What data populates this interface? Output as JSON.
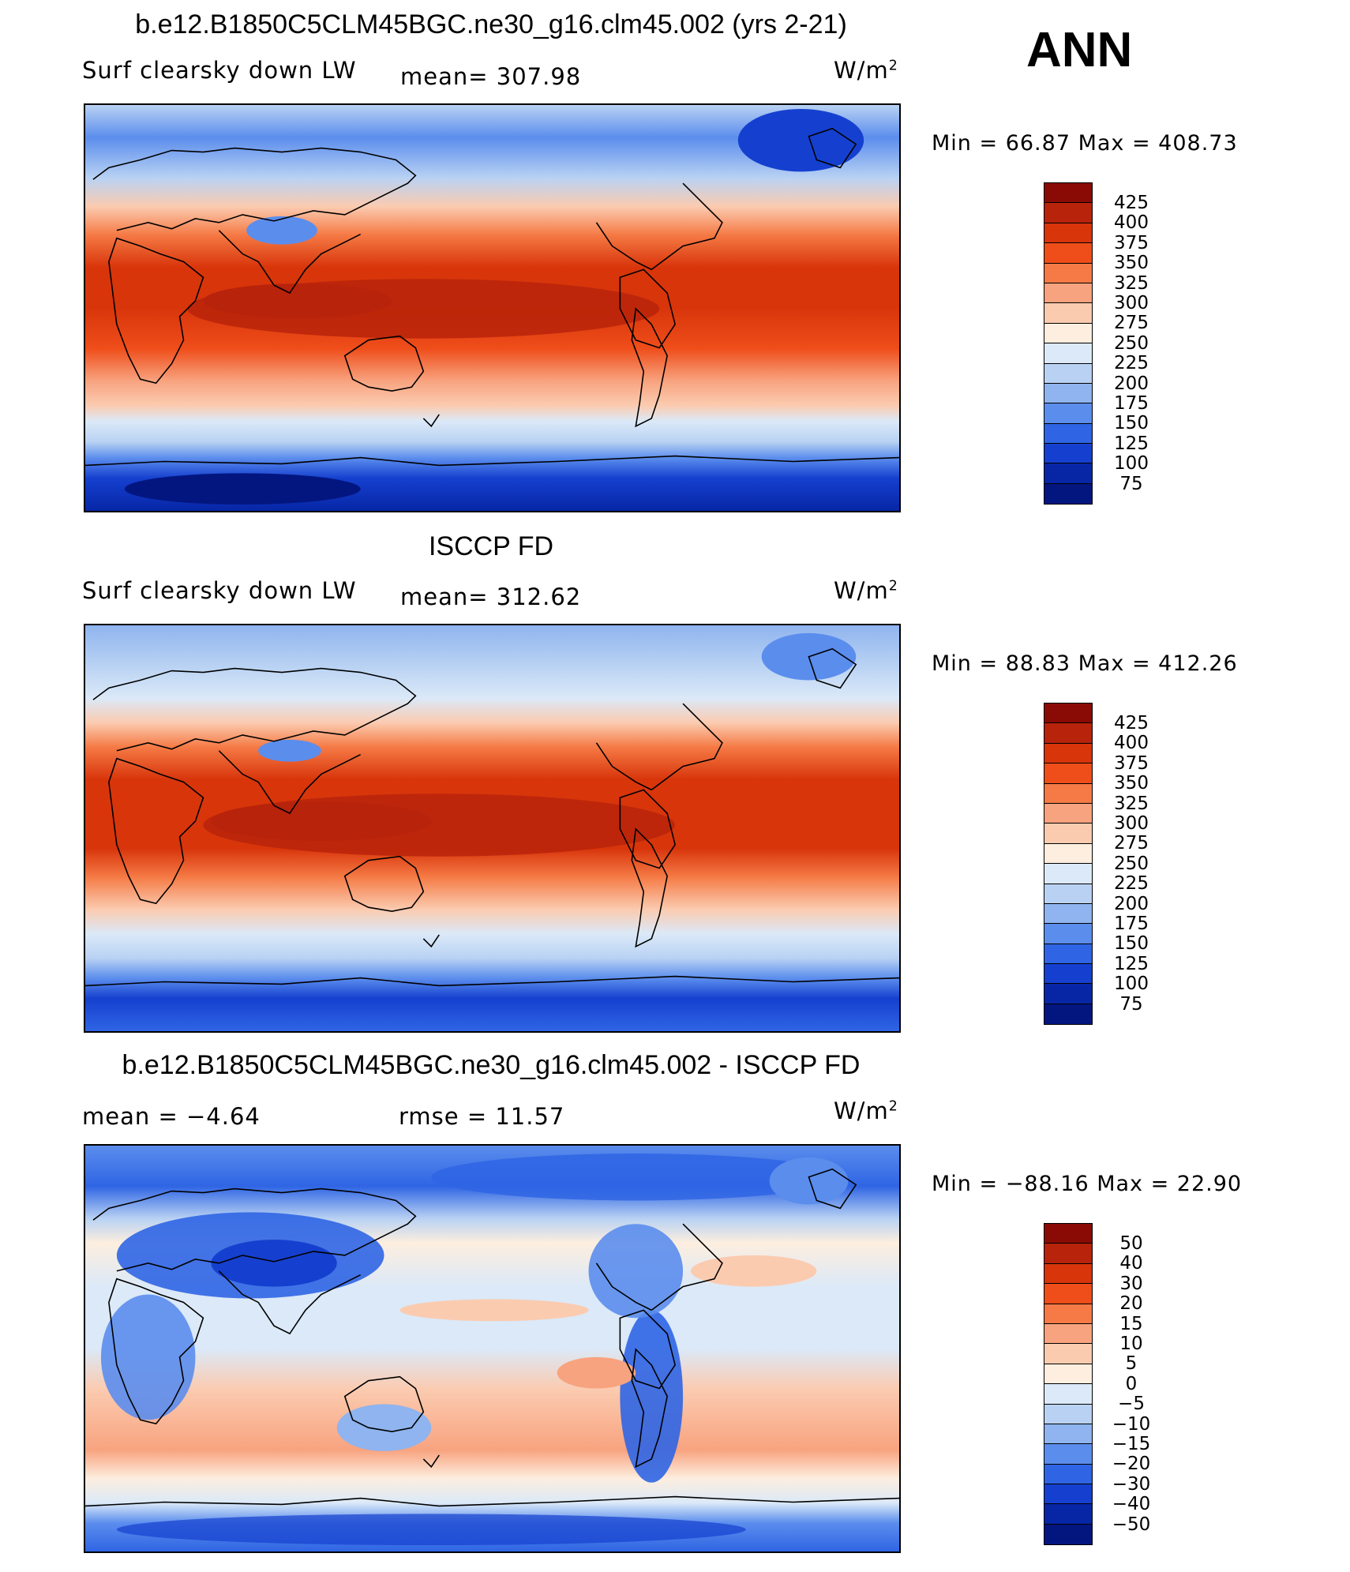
{
  "season": "ANN",
  "units": "W/m",
  "units_exp": "2",
  "panels": [
    {
      "title": "b.e12.B1850C5CLM45BGC.ne30_g16.clm45.002 (yrs 2-21)",
      "left_label": "Surf  clearsky  down  LW",
      "center_label": "mean=  307.98",
      "min_max": "Min  =    66.87  Max  =  408.73",
      "levels": [
        "425",
        "400",
        "375",
        "350",
        "325",
        "300",
        "275",
        "250",
        "225",
        "200",
        "175",
        "150",
        "125",
        "100",
        "75"
      ],
      "colors": [
        "#8a0b06",
        "#b8230b",
        "#d8350b",
        "#ef4d1a",
        "#f57a45",
        "#f8a37f",
        "#fbcbb0",
        "#fdeedf",
        "#dbe9f8",
        "#b9d2f3",
        "#8fb4ef",
        "#5b8ded",
        "#2f65e4",
        "#1540cf",
        "#0726a6",
        "#031680"
      ]
    },
    {
      "title": "ISCCP FD",
      "left_label": "Surf  clearsky  down  LW",
      "center_label": "mean=  312.62",
      "min_max": "Min  =    88.83  Max  =  412.26",
      "levels": [
        "425",
        "400",
        "375",
        "350",
        "325",
        "300",
        "275",
        "250",
        "225",
        "200",
        "175",
        "150",
        "125",
        "100",
        "75"
      ],
      "colors": [
        "#8a0b06",
        "#b8230b",
        "#d8350b",
        "#ef4d1a",
        "#f57a45",
        "#f8a37f",
        "#fbcbb0",
        "#fdeedf",
        "#dbe9f8",
        "#b9d2f3",
        "#8fb4ef",
        "#5b8ded",
        "#2f65e4",
        "#1540cf",
        "#0726a6",
        "#031680"
      ]
    },
    {
      "title": "b.e12.B1850C5CLM45BGC.ne30_g16.clm45.002 - ISCCP FD",
      "left_label": "mean  =    −4.64",
      "center_label": "rmse  =    11.57",
      "min_max": "Min  =  −88.16  Max  =    22.90",
      "levels": [
        "50",
        "40",
        "30",
        "20",
        "15",
        "10",
        "5",
        "0",
        "−5",
        "−10",
        "−15",
        "−20",
        "−30",
        "−40",
        "−50"
      ],
      "colors": [
        "#8a0b06",
        "#b8230b",
        "#d8350b",
        "#ef4d1a",
        "#f57a45",
        "#f8a37f",
        "#fbcbb0",
        "#fdeedf",
        "#dbe9f8",
        "#b9d2f3",
        "#8fb4ef",
        "#5b8ded",
        "#2f65e4",
        "#1540cf",
        "#0726a6",
        "#031680"
      ]
    }
  ]
}
